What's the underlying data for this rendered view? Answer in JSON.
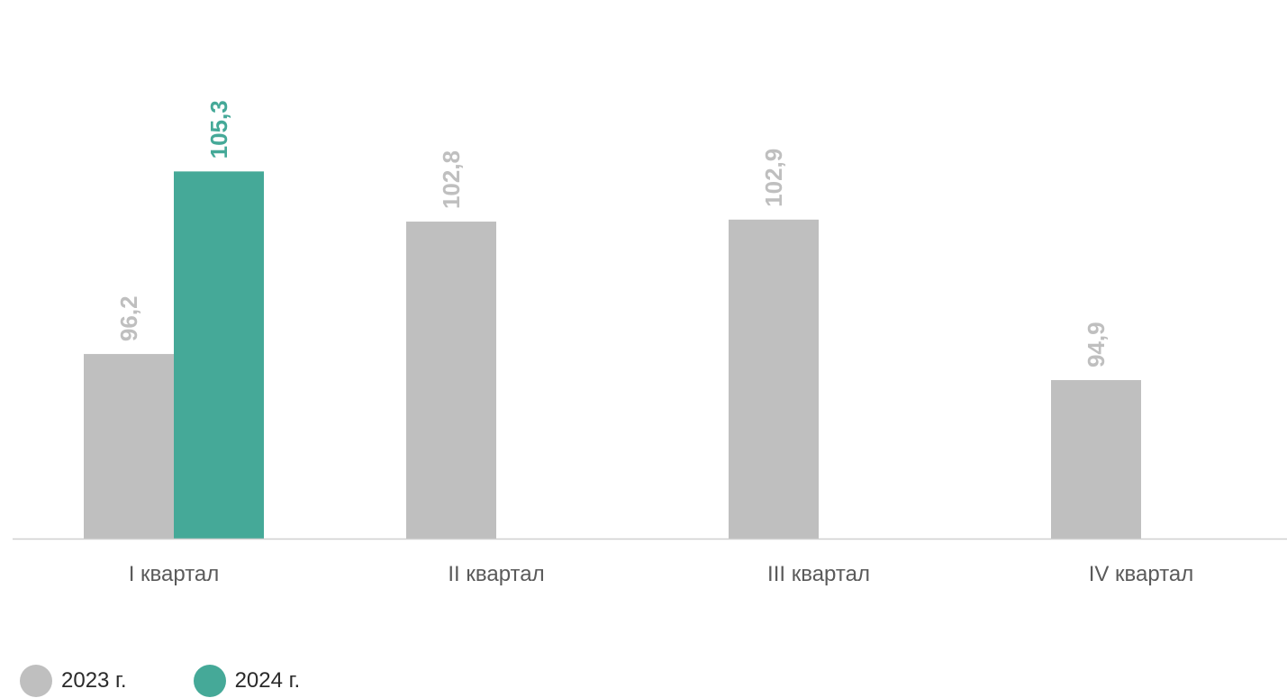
{
  "chart_data": {
    "type": "bar",
    "title": "",
    "xlabel": "",
    "ylabel": "",
    "categories": [
      "I квартал",
      "II квартал",
      "III квартал",
      "IV квартал"
    ],
    "series": [
      {
        "name": "2023 г.",
        "color": "#bfbfbf",
        "values": [
          96.2,
          102.8,
          102.9,
          94.9
        ],
        "labels": [
          "96,2",
          "102,8",
          "102,9",
          "94,9"
        ]
      },
      {
        "name": "2024 г.",
        "color": "#45a998",
        "values": [
          105.3,
          null,
          null,
          null
        ],
        "labels": [
          "105,3",
          null,
          null,
          null
        ]
      }
    ],
    "ylim": [
      87,
      109
    ],
    "grid": false,
    "legend_position": "bottom-left"
  }
}
